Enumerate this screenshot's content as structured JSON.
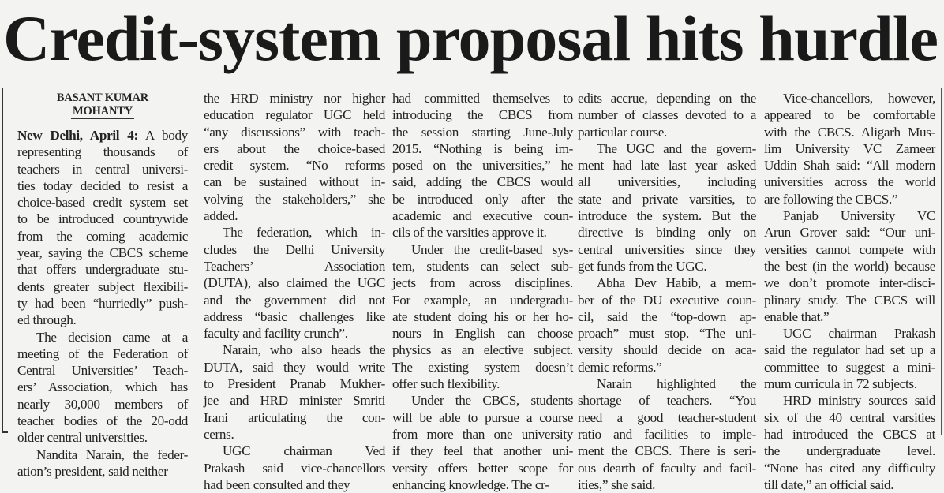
{
  "headline": "Credit-system proposal hits hurdle",
  "byline": {
    "line1": "BASANT KUMAR",
    "line2": "MOHANTY"
  },
  "dateline": "New Delhi, April 4:",
  "columns": [
    {
      "paragraphs": [
        {
          "lines": [
            " A body",
            "representing thousands of",
            "teachers in central universi-",
            "ties today decided to resist a",
            "choice-based credit system set",
            "to be introduced countrywide",
            "from the coming academic",
            "year, saying the CBCS scheme",
            "that offers undergraduate stu-",
            "dents greater subject flexibili-",
            "ty had been “hurriedly” push-",
            "ed through."
          ]
        },
        {
          "lines": [
            "The decision came at a",
            "meeting of the Federation of",
            "Central Universities’ Teach-",
            "ers’ Association, which has",
            "nearly 30,000 members of",
            "teacher bodies of the 20-odd",
            "older central universities."
          ]
        },
        {
          "lines": [
            "Nandita Narain, the feder-",
            "ation’s president, said neither"
          ]
        }
      ]
    },
    {
      "paragraphs": [
        {
          "lines": [
            "the HRD ministry nor higher",
            "education regulator UGC held",
            "“any discussions” with teach-",
            "ers about the choice-based",
            "credit system. “No reforms",
            "can be sustained without in-",
            "volving the stakeholders,” she",
            "added."
          ]
        },
        {
          "lines": [
            "The federation, which in-",
            "cludes the Delhi University",
            "Teachers’ Association",
            "(DUTA), also claimed the UGC",
            "and the government did not",
            "address “basic challenges like",
            "faculty and facility crunch”."
          ]
        },
        {
          "lines": [
            "Narain, who also heads the",
            "DUTA, said they would write",
            "to President Pranab Mukher-",
            "jee and HRD minister Smriti",
            "Irani articulating the con-",
            "cerns."
          ]
        },
        {
          "lines": [
            "UGC chairman Ved",
            "Prakash said vice-chancellors",
            "had been consulted and they"
          ]
        }
      ]
    },
    {
      "paragraphs": [
        {
          "lines": [
            "had committed themselves to",
            "introducing the CBCS from",
            "the session starting June-July",
            "2015. “Nothing is being im-",
            "posed on the universities,” he",
            "said, adding the CBCS would",
            "be introduced only after the",
            "academic and executive coun-",
            "cils of the varsities approve it."
          ]
        },
        {
          "lines": [
            "Under the credit-based sys-",
            "tem, students can select sub-",
            "jects from across disciplines.",
            "For example, an undergradu-",
            "ate student doing his or her ho-",
            "nours in English can choose",
            "physics as an elective subject.",
            "The existing system doesn’t",
            "offer such flexibility."
          ]
        },
        {
          "lines": [
            "Under the CBCS, students",
            "will be able to pursue a course",
            "from more than one university",
            "if they feel that another uni-",
            "versity offers better scope for",
            "enhancing knowledge. The cr-"
          ]
        }
      ]
    },
    {
      "paragraphs": [
        {
          "lines": [
            "edits accrue, depending on the",
            "number of classes devoted to a",
            "particular course."
          ]
        },
        {
          "lines": [
            "The UGC and the govern-",
            "ment had late last year asked",
            "all universities, including",
            "state and private varsities, to",
            "introduce the system. But the",
            "directive is binding only on",
            "central universities since they",
            "get funds from the UGC."
          ]
        },
        {
          "lines": [
            "Abha Dev Habib, a mem-",
            "ber of the DU executive coun-",
            "cil, said the “top-down ap-",
            "proach” must stop. “The uni-",
            "versity should decide on aca-",
            "demic reforms.”"
          ]
        },
        {
          "lines": [
            "Narain highlighted the",
            "shortage of teachers. “You",
            "need a good teacher-student",
            "ratio and facilities to imple-",
            "ment the CBCS. There is seri-",
            "ous dearth of faculty and facil-",
            "ities,” she said."
          ]
        }
      ]
    },
    {
      "paragraphs": [
        {
          "lines": [
            "Vice-chancellors, however,",
            "appeared to be comfortable",
            "with the CBCS. Aligarh Mus-",
            "lim University VC Zameer",
            "Uddin Shah said: “All modern",
            "universities across the world",
            "are following the CBCS.”"
          ]
        },
        {
          "lines": [
            "Panjab University VC",
            "Arun Grover said: “Our uni-",
            "versities cannot compete with",
            "the best (in the world) because",
            "we don’t promote inter-disci-",
            "plinary study. The CBCS will",
            "enable that.”"
          ]
        },
        {
          "lines": [
            "UGC chairman Prakash",
            "said the regulator had set up a",
            "committee to suggest a mini-",
            "mum curricula in 72 subjects."
          ]
        },
        {
          "lines": [
            "HRD ministry sources said",
            "six of the 40 central varsities",
            "had introduced the CBCS at",
            "the undergraduate level.",
            "“None has cited any difficulty",
            "till date,” an official said."
          ]
        }
      ]
    }
  ]
}
